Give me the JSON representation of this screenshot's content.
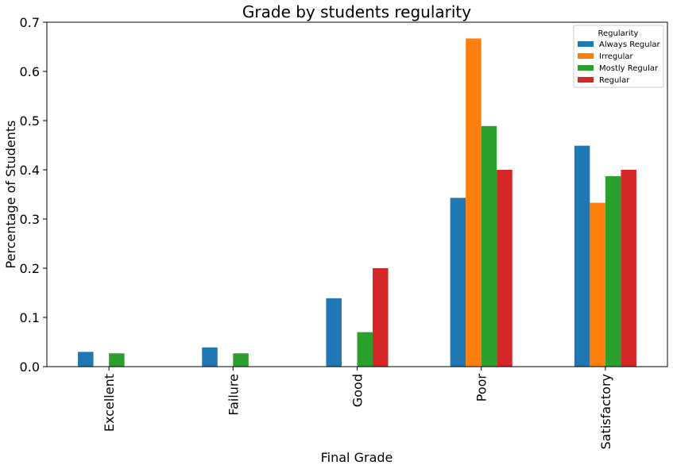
{
  "chart_data": {
    "type": "bar",
    "title": "Grade by students regularity",
    "xlabel": "Final Grade",
    "ylabel": "Percentage of Students",
    "categories": [
      "Excellent",
      "Failure",
      "Good",
      "Poor",
      "Satisfactory"
    ],
    "series": [
      {
        "name": "Always Regular",
        "color": "#1f77b4",
        "values": [
          0.03,
          0.039,
          0.139,
          0.343,
          0.449
        ]
      },
      {
        "name": "Irregular",
        "color": "#ff7f0e",
        "values": [
          0,
          0,
          0,
          0.667,
          0.333
        ]
      },
      {
        "name": "Mostly Regular",
        "color": "#2ca02c",
        "values": [
          0.027,
          0.027,
          0.07,
          0.489,
          0.387
        ]
      },
      {
        "name": "Regular",
        "color": "#d62728",
        "values": [
          0,
          0,
          0.2,
          0.4,
          0.4
        ]
      }
    ],
    "ylim": [
      0,
      0.7
    ],
    "yticks": [
      "0.0",
      "0.1",
      "0.2",
      "0.3",
      "0.4",
      "0.5",
      "0.6",
      "0.7"
    ],
    "grid": false,
    "legend": {
      "title": "Regularity",
      "placement": "top-right"
    }
  }
}
